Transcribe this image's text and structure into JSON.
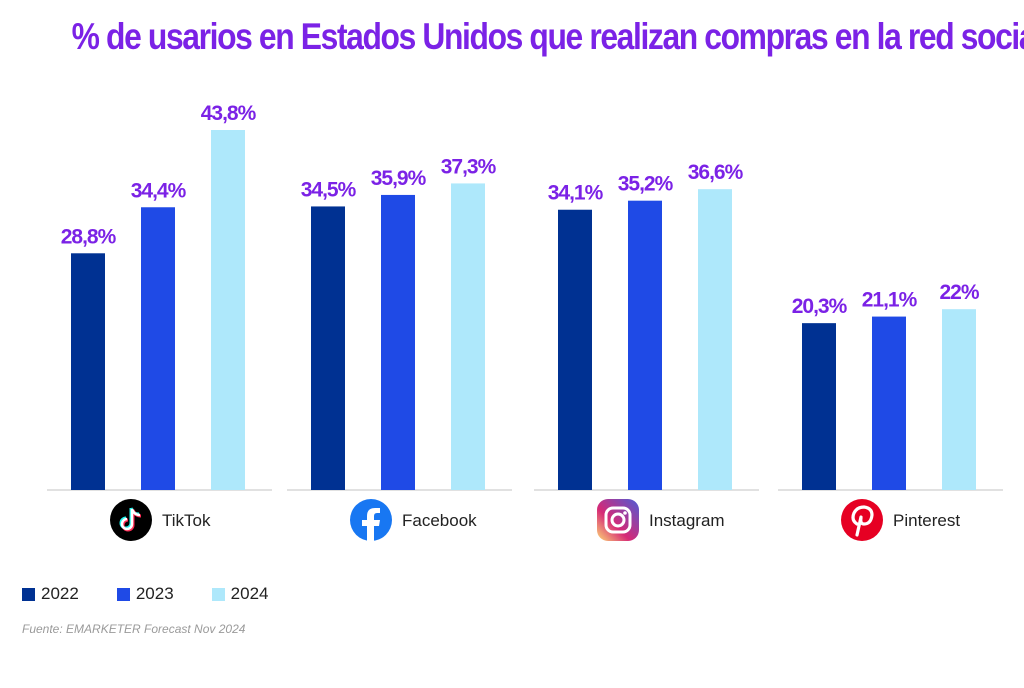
{
  "colors": {
    "title": "#7b22e6",
    "value_labels": "#7b22e6",
    "axis": "#cfcfcf",
    "series": [
      "#003192",
      "#1f4ae6",
      "#aee8fb"
    ]
  },
  "chart_data": {
    "type": "bar",
    "title": "% de usarios en Estados Unidos que realizan compras en la red social",
    "categories": [
      "TikTok",
      "Facebook",
      "Instagram",
      "Pinterest"
    ],
    "category_icons": [
      "tiktok-icon",
      "facebook-icon",
      "instagram-icon",
      "pinterest-icon"
    ],
    "series": [
      {
        "name": "2022",
        "values": [
          28.8,
          34.5,
          34.1,
          20.3
        ],
        "labels": [
          "28,8%",
          "34,5%",
          "34,1%",
          "20,3%"
        ]
      },
      {
        "name": "2023",
        "values": [
          34.4,
          35.9,
          35.2,
          21.1
        ],
        "labels": [
          "34,4%",
          "35,9%",
          "35,2%",
          "21,1%"
        ]
      },
      {
        "name": "2024",
        "values": [
          43.8,
          37.3,
          36.6,
          22
        ],
        "labels": [
          "43,8%",
          "37,3%",
          "36,6%",
          "22%"
        ]
      }
    ],
    "ylim": [
      0,
      45
    ],
    "grid": false,
    "legend_position": "bottom-left",
    "source": "Fuente: EMARKETER Forecast Nov 2024"
  }
}
